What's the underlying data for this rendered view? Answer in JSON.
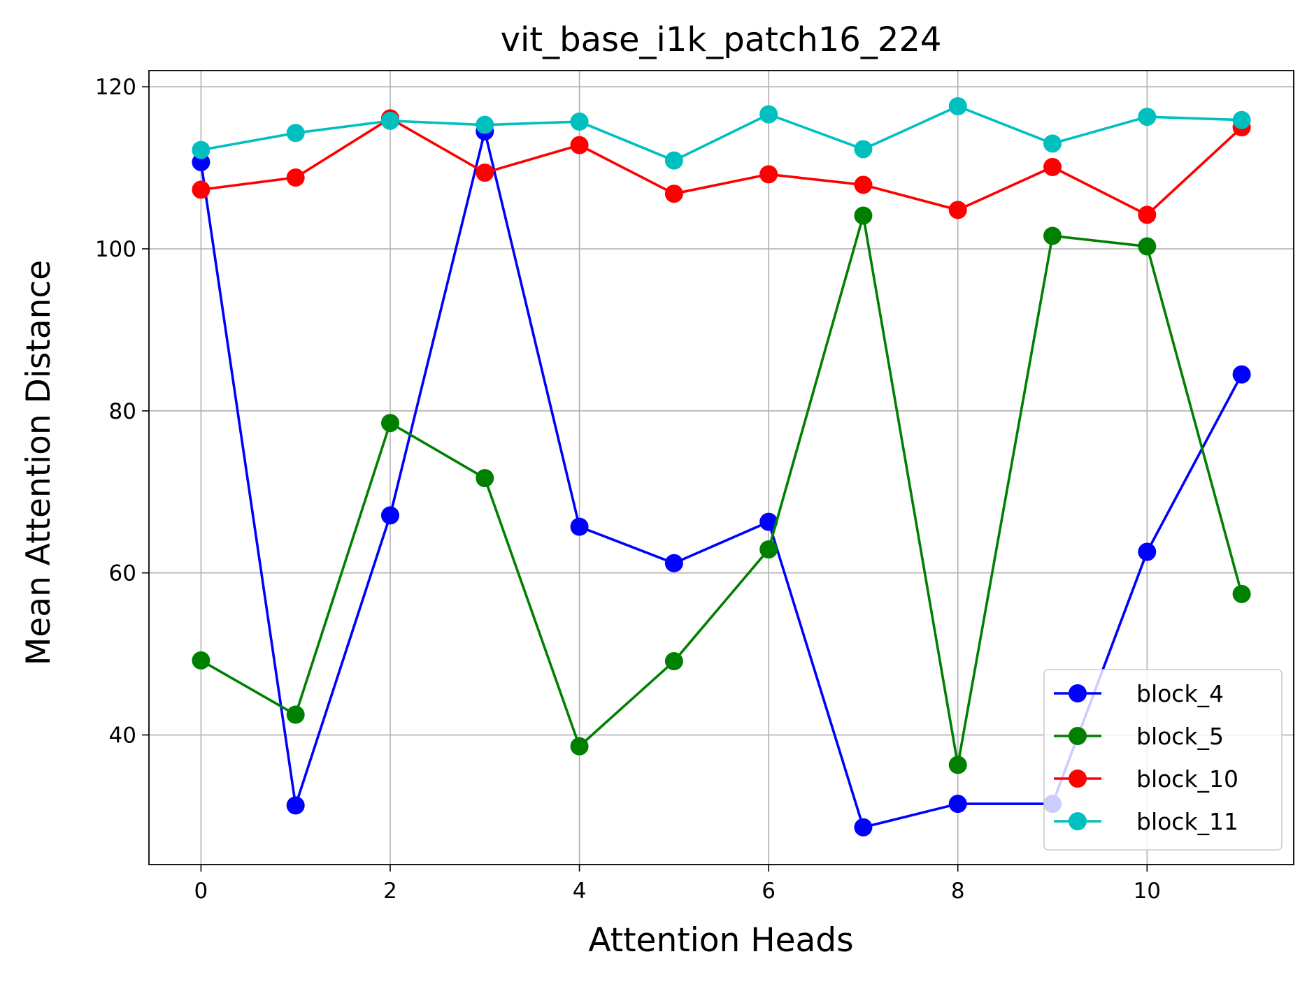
{
  "chart_data": {
    "type": "line",
    "title": "vit_base_i1k_patch16_224",
    "xlabel": "Attention Heads",
    "ylabel": "Mean Attention Distance",
    "x": [
      0,
      1,
      2,
      3,
      4,
      5,
      6,
      7,
      8,
      9,
      10,
      11
    ],
    "xlim": [
      -0.55,
      11.55
    ],
    "ylim": [
      24,
      122
    ],
    "xticks": [
      0,
      2,
      4,
      6,
      8,
      10
    ],
    "yticks": [
      40,
      60,
      80,
      100,
      120
    ],
    "grid": true,
    "legend_position": "lower-right",
    "series": [
      {
        "name": "block_4",
        "color": "#0000ff",
        "values": [
          110.7,
          31.3,
          67.1,
          114.5,
          65.7,
          61.2,
          66.3,
          28.6,
          31.5,
          31.5,
          62.6,
          84.5
        ]
      },
      {
        "name": "block_5",
        "color": "#008000",
        "values": [
          49.2,
          42.5,
          78.5,
          71.7,
          38.6,
          49.1,
          62.9,
          104.1,
          36.3,
          101.6,
          100.3,
          57.4
        ]
      },
      {
        "name": "block_10",
        "color": "#ff0000",
        "values": [
          107.3,
          108.8,
          116.1,
          109.4,
          112.8,
          106.8,
          109.2,
          107.9,
          104.8,
          110.1,
          104.2,
          115.0
        ]
      },
      {
        "name": "block_11",
        "color": "#00bfbf",
        "values": [
          112.2,
          114.3,
          115.8,
          115.3,
          115.7,
          110.9,
          116.6,
          112.3,
          117.6,
          113.0,
          116.3,
          115.9
        ]
      }
    ]
  }
}
